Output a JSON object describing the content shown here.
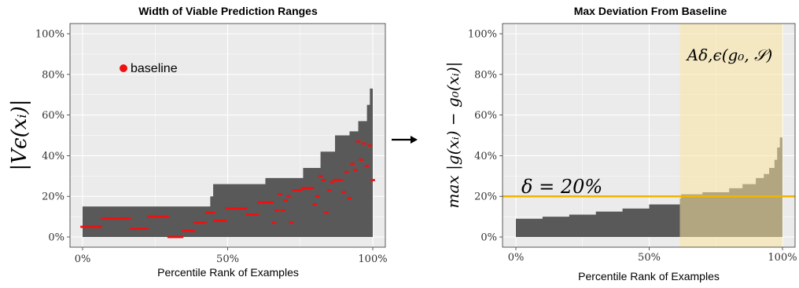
{
  "arrow": {
    "symbol": "→"
  },
  "chart_data": [
    {
      "type": "area",
      "title": "Width of Viable Prediction Ranges",
      "xlabel": "Percentile Rank of Examples",
      "ylabel": "|Vϵ(xᵢ)|",
      "xlim": [
        0,
        100
      ],
      "ylim": [
        0,
        100
      ],
      "xticks": [
        "0%",
        "50%",
        "100%"
      ],
      "yticks": [
        "0%",
        "20%",
        "40%",
        "60%",
        "80%",
        "100%"
      ],
      "grid": true,
      "legend": {
        "label": "baseline",
        "color": "#ee1111",
        "placement": "top-left"
      },
      "range_width": {
        "x": [
          0,
          43,
          44,
          45,
          62,
          63,
          75,
          76,
          81,
          82,
          86,
          87,
          91,
          92,
          94,
          95,
          97,
          98,
          99,
          100
        ],
        "y": [
          15,
          15,
          20,
          26,
          26,
          29,
          29,
          34,
          34,
          42,
          42,
          50,
          50,
          52,
          52,
          57,
          57,
          65,
          73,
          80
        ]
      },
      "baseline_points": {
        "x": [
          0,
          1,
          2,
          3,
          4,
          5,
          6,
          7,
          8,
          9,
          10,
          11,
          12,
          13,
          14,
          15,
          16,
          17,
          18,
          19,
          20,
          21,
          22,
          23,
          24,
          25,
          26,
          27,
          28,
          29,
          30,
          31,
          32,
          33,
          34,
          35,
          36,
          37,
          38,
          39,
          40,
          41,
          42,
          43,
          44,
          45,
          46,
          47,
          48,
          49,
          50,
          51,
          52,
          53,
          54,
          55,
          56,
          57,
          58,
          59,
          60,
          61,
          62,
          63,
          64,
          65,
          66,
          67,
          68,
          69,
          70,
          71,
          72,
          73,
          74,
          75,
          76,
          77,
          78,
          79,
          80,
          81,
          82,
          83,
          84,
          85,
          86,
          87,
          88,
          89,
          90,
          91,
          92,
          93,
          94,
          95,
          96,
          97,
          98,
          99,
          100
        ],
        "y": [
          5,
          5,
          5,
          5,
          5,
          5,
          5,
          9,
          9,
          9,
          9,
          9,
          9,
          9,
          9,
          9,
          9,
          4,
          4,
          4,
          4,
          4,
          4,
          10,
          10,
          10,
          10,
          10,
          10,
          10,
          0,
          0,
          0,
          0,
          0,
          3,
          3,
          3,
          3,
          7,
          7,
          7,
          7,
          12,
          12,
          12,
          8,
          8,
          8,
          8,
          14,
          14,
          14,
          14,
          14,
          14,
          14,
          11,
          11,
          11,
          11,
          17,
          17,
          17,
          17,
          17,
          7,
          13,
          21,
          13,
          18,
          20,
          7,
          23,
          23,
          23,
          24,
          24,
          24,
          24,
          16,
          20,
          30,
          28,
          12,
          23,
          27,
          28,
          28,
          28,
          22,
          32,
          19,
          36,
          33,
          47,
          38,
          46,
          35,
          45,
          28
        ]
      }
    },
    {
      "type": "area",
      "title": "Max Deviation From Baseline",
      "xlabel": "Percentile Rank of Examples",
      "ylabel": "max |g(xᵢ) − g₀(xᵢ)|",
      "xlim": [
        0,
        100
      ],
      "ylim": [
        0,
        100
      ],
      "xticks": [
        "0%",
        "50%",
        "100%"
      ],
      "yticks": [
        "0%",
        "20%",
        "40%",
        "60%",
        "80%",
        "100%"
      ],
      "grid": true,
      "threshold": {
        "y": 20,
        "label": "δ = 20%",
        "color": "#f0b400"
      },
      "region": {
        "x": [
          61.5,
          100
        ],
        "label": "Aδ,ϵ(g₀, 𝒮)",
        "color": "#fbe6a2"
      },
      "max_deviation": {
        "x": [
          0,
          10,
          20,
          30,
          40,
          50,
          61.5,
          62,
          70,
          80,
          85,
          90,
          93,
          95,
          97,
          98,
          99,
          100
        ],
        "y": [
          9,
          10,
          11,
          12.5,
          14,
          16,
          19,
          21,
          22,
          24,
          26,
          29,
          31,
          34,
          38,
          44,
          49,
          55
        ]
      }
    }
  ]
}
